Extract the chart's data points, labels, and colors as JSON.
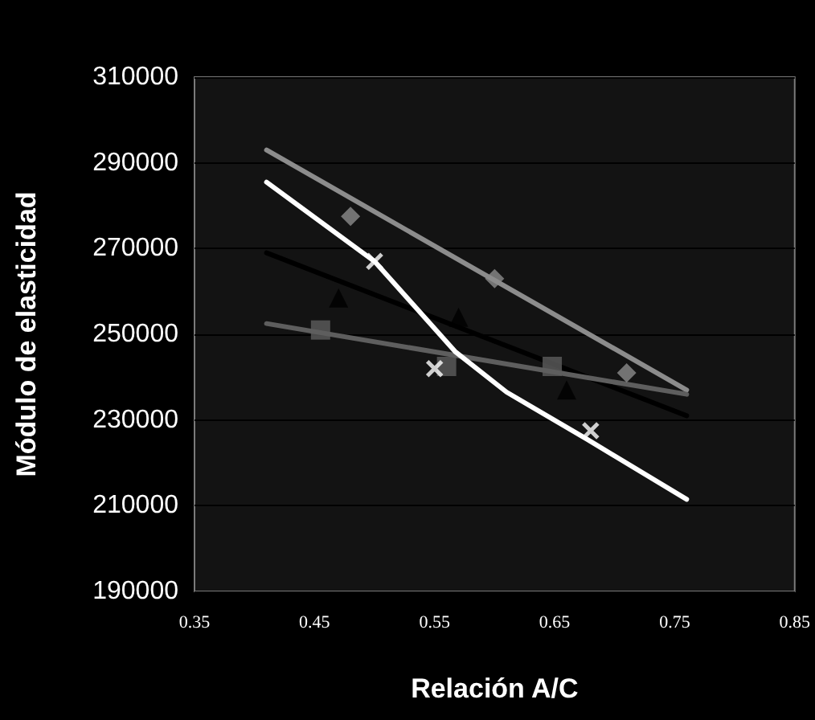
{
  "chart_data": {
    "type": "scatter",
    "xlabel": "Relación A/C",
    "ylabel": "Módulo de elasticidad",
    "xlim": [
      0.35,
      0.85
    ],
    "xticks": [
      0.35,
      0.45,
      0.55,
      0.65,
      0.75,
      0.85
    ],
    "ylim": [
      190000,
      310000
    ],
    "yticks": [
      190000,
      210000,
      230000,
      250000,
      270000,
      290000,
      310000
    ],
    "grid": "y",
    "series": [
      {
        "type": "line",
        "color": "#8c8c8c",
        "marker": "none",
        "x": [
          0.41,
          0.76
        ],
        "values": [
          293000,
          237000
        ]
      },
      {
        "type": "line",
        "color": "#000000",
        "marker": "none",
        "x": [
          0.41,
          0.76
        ],
        "values": [
          269000,
          231000
        ]
      },
      {
        "type": "line",
        "color": "#5e5e5e",
        "marker": "none",
        "x": [
          0.41,
          0.76
        ],
        "values": [
          252500,
          236000
        ]
      },
      {
        "type": "line",
        "color": "#ffffff",
        "marker": "none",
        "x": [
          0.41,
          0.5,
          0.567,
          0.61,
          0.677,
          0.76
        ],
        "values": [
          285500,
          267000,
          246000,
          236500,
          225500,
          211500
        ]
      },
      {
        "color": "#8c8c8c",
        "marker": "diamond",
        "x": [
          0.48,
          0.6,
          0.71
        ],
        "values": [
          277500,
          263000,
          241000
        ]
      },
      {
        "color": "#000000",
        "marker": "triangle",
        "x": [
          0.47,
          0.57,
          0.66
        ],
        "values": [
          258500,
          254000,
          237000
        ]
      },
      {
        "color": "#5e5e5e",
        "marker": "square",
        "x": [
          0.455,
          0.56,
          0.648
        ],
        "values": [
          251000,
          242500,
          242500
        ]
      },
      {
        "color": "#ffffff",
        "marker": "cross",
        "x": [
          0.5,
          0.55,
          0.68
        ],
        "values": [
          267000,
          242000,
          227500
        ]
      }
    ]
  }
}
